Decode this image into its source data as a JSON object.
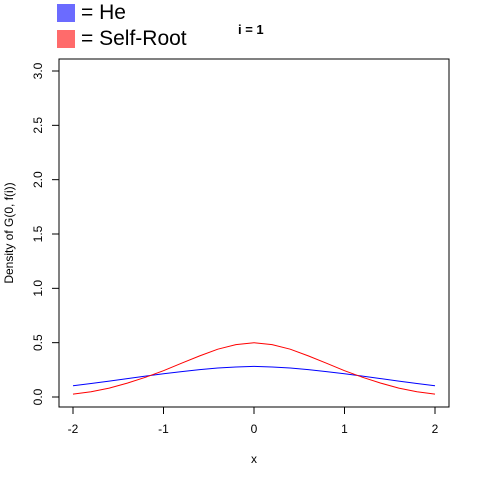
{
  "legend": {
    "items": [
      {
        "label": "= He",
        "color": "#6b6bff"
      },
      {
        "label": "= Self-Root",
        "color": "#ff6b6b"
      }
    ]
  },
  "chart_data": {
    "type": "line",
    "title": "i = 1",
    "xlabel": "x",
    "ylabel": "Density of G(0, f(i))",
    "xlim": [
      -2,
      2
    ],
    "ylim": [
      0,
      3
    ],
    "xticks": [
      "-2",
      "-1",
      "0",
      "1",
      "2"
    ],
    "yticks": [
      "0.0",
      "0.5",
      "1.0",
      "1.5",
      "2.0",
      "2.5",
      "3.0"
    ],
    "grid": false,
    "series": [
      {
        "name": "He",
        "color": "#0000ff",
        "x": [
          -2,
          -1.8,
          -1.6,
          -1.4,
          -1.2,
          -1,
          -0.8,
          -0.6,
          -0.4,
          -0.2,
          0,
          0.2,
          0.4,
          0.6,
          0.8,
          1,
          1.2,
          1.4,
          1.6,
          1.8,
          2
        ],
        "y": [
          0.103,
          0.124,
          0.146,
          0.169,
          0.192,
          0.214,
          0.234,
          0.252,
          0.267,
          0.276,
          0.282,
          0.276,
          0.267,
          0.252,
          0.234,
          0.214,
          0.192,
          0.169,
          0.146,
          0.124,
          0.103
        ]
      },
      {
        "name": "Self-Root",
        "color": "#ff0000",
        "x": [
          -2,
          -1.8,
          -1.6,
          -1.4,
          -1.2,
          -1,
          -0.8,
          -0.6,
          -0.4,
          -0.2,
          0,
          0.2,
          0.4,
          0.6,
          0.8,
          1,
          1.2,
          1.4,
          1.6,
          1.8,
          2
        ],
        "y": [
          0.027,
          0.049,
          0.082,
          0.128,
          0.181,
          0.242,
          0.311,
          0.378,
          0.44,
          0.482,
          0.5,
          0.482,
          0.44,
          0.378,
          0.311,
          0.242,
          0.181,
          0.128,
          0.082,
          0.049,
          0.027
        ]
      }
    ]
  }
}
